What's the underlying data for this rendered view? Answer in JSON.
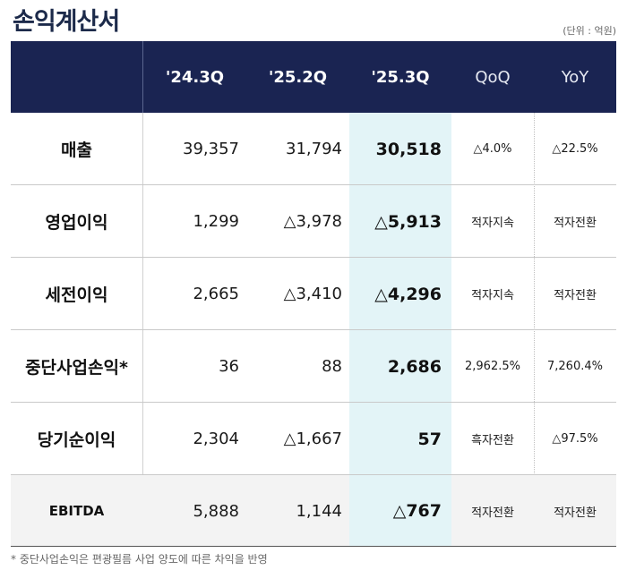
{
  "page": {
    "title": "손익계산서",
    "unit": "(단위 : 억원)",
    "footnote": "* 중단사업손익은 편광필름 사업 양도에 따른 차익을 반영"
  },
  "table": {
    "columns": [
      "'24.3Q",
      "'25.2Q",
      "'25.3Q",
      "QoQ",
      "YoY"
    ],
    "rows": [
      {
        "label": "매출",
        "values": [
          "39,357",
          "31,794",
          "30,518",
          "△4.0%",
          "△22.5%"
        ]
      },
      {
        "label": "영업이익",
        "values": [
          "1,299",
          "△3,978",
          "△5,913",
          "적자지속",
          "적자전환"
        ]
      },
      {
        "label": "세전이익",
        "values": [
          "2,665",
          "△3,410",
          "△4,296",
          "적자지속",
          "적자전환"
        ]
      },
      {
        "label": "중단사업손익*",
        "values": [
          "36",
          "88",
          "2,686",
          "2,962.5%",
          "7,260.4%"
        ]
      },
      {
        "label": "당기순이익",
        "values": [
          "2,304",
          "△1,667",
          "57",
          "흑자전환",
          "△97.5%"
        ]
      },
      {
        "label": "EBITDA",
        "values": [
          "5,888",
          "1,144",
          "△767",
          "적자전환",
          "적자전환"
        ]
      }
    ]
  },
  "colors": {
    "header_bg": "#1a2452",
    "highlight_col": "#e3f4f7",
    "title": "#1c2a4a"
  }
}
